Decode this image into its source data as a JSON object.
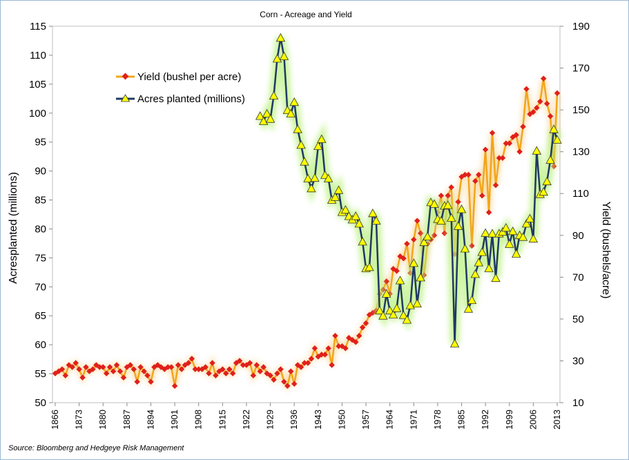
{
  "source": "Source: Bloomberg and Hedgeye Risk Management",
  "colors": {
    "yield_line": "#f2a51a",
    "yield_marker": "#e0201b",
    "acres_line": "#1f3864",
    "acres_marker": "#ffff00",
    "glow": "#b8f07a"
  },
  "chart_data": {
    "type": "line",
    "title": "Corn - Acreage and Yield",
    "ylabel_left": "Acresplanted (millions)",
    "ylabel_right": "Yield (bushels/acre)",
    "ylim_left": [
      50,
      115
    ],
    "ylim_right": [
      10,
      190
    ],
    "yticks_left": [
      "50",
      "55",
      "60",
      "65",
      "70",
      "75",
      "80",
      "85",
      "90",
      "95",
      "100",
      "105",
      "110",
      "115"
    ],
    "yticks_right": [
      "10",
      "30",
      "50",
      "70",
      "90",
      "110",
      "130",
      "150",
      "170",
      "190"
    ],
    "xlim": [
      1866,
      2013
    ],
    "xticks": [
      "1866",
      "1873",
      "1880",
      "1887",
      "1894",
      "1901",
      "1908",
      "1915",
      "1922",
      "1929",
      "1936",
      "1943",
      "1950",
      "1957",
      "1964",
      "1971",
      "1978",
      "1985",
      "1992",
      "1999",
      "2006",
      "2013"
    ],
    "legend_position": "top-left",
    "grid": false,
    "series": [
      {
        "name": "Yield (bushel per acre)",
        "axis": "right",
        "x": [
          1866,
          1867,
          1868,
          1869,
          1870,
          1871,
          1872,
          1873,
          1874,
          1875,
          1876,
          1877,
          1878,
          1879,
          1880,
          1881,
          1882,
          1883,
          1884,
          1885,
          1886,
          1887,
          1888,
          1889,
          1890,
          1891,
          1892,
          1893,
          1894,
          1895,
          1896,
          1897,
          1898,
          1899,
          1900,
          1901,
          1902,
          1903,
          1904,
          1905,
          1906,
          1907,
          1908,
          1909,
          1910,
          1911,
          1912,
          1913,
          1914,
          1915,
          1916,
          1917,
          1918,
          1919,
          1920,
          1921,
          1922,
          1923,
          1924,
          1925,
          1926,
          1927,
          1928,
          1929,
          1930,
          1931,
          1932,
          1933,
          1934,
          1935,
          1936,
          1937,
          1938,
          1939,
          1940,
          1941,
          1942,
          1943,
          1944,
          1945,
          1946,
          1947,
          1948,
          1949,
          1950,
          1951,
          1952,
          1953,
          1954,
          1955,
          1956,
          1957,
          1958,
          1959,
          1960,
          1961,
          1962,
          1963,
          1964,
          1965,
          1966,
          1967,
          1968,
          1969,
          1970,
          1971,
          1972,
          1973,
          1974,
          1975,
          1976,
          1977,
          1978,
          1979,
          1980,
          1981,
          1982,
          1983,
          1984,
          1985,
          1986,
          1987,
          1988,
          1989,
          1990,
          1991,
          1992,
          1993,
          1994,
          1995,
          1996,
          1997,
          1998,
          1999,
          2000,
          2001,
          2002,
          2003,
          2004,
          2005,
          2006,
          2007,
          2008,
          2009,
          2010,
          2011,
          2012,
          2013
        ],
        "values": [
          24,
          25,
          26,
          23,
          28,
          27,
          29,
          26,
          22,
          27,
          25,
          26,
          28,
          27,
          27,
          24,
          27,
          25,
          28,
          25,
          22,
          27,
          28,
          26,
          20,
          27,
          25,
          23,
          20,
          27,
          28,
          27,
          26,
          27,
          27,
          18,
          28,
          26,
          28,
          29,
          31,
          26,
          26,
          26,
          27,
          24,
          29,
          23,
          25,
          26,
          24,
          26,
          24,
          29,
          30,
          28,
          28,
          29,
          23,
          28,
          25,
          27,
          24,
          23,
          21,
          24,
          26,
          20,
          18,
          25,
          19,
          28,
          27,
          29,
          29,
          31,
          36,
          32,
          33,
          33,
          36,
          28,
          42,
          37,
          37,
          36,
          41,
          40,
          39,
          42,
          46,
          48,
          52,
          53,
          54,
          62,
          64,
          68,
          62,
          74,
          73,
          80,
          79,
          86,
          72,
          88,
          97,
          91,
          71,
          86,
          88,
          90,
          101,
          109,
          91,
          109,
          113,
          81,
          106,
          118,
          119,
          119,
          85,
          116,
          119,
          109,
          131,
          101,
          139,
          114,
          127,
          127,
          134,
          134,
          137,
          138,
          130,
          142,
          160,
          148,
          149,
          151,
          154,
          165,
          153,
          147,
          123,
          158
        ]
      },
      {
        "name": "Acres planted (millions)",
        "axis": "left",
        "x": [
          1926,
          1927,
          1928,
          1929,
          1930,
          1931,
          1932,
          1933,
          1934,
          1935,
          1936,
          1937,
          1938,
          1939,
          1940,
          1941,
          1942,
          1943,
          1944,
          1945,
          1946,
          1947,
          1948,
          1949,
          1950,
          1951,
          1952,
          1953,
          1954,
          1955,
          1956,
          1957,
          1958,
          1959,
          1960,
          1961,
          1962,
          1963,
          1964,
          1965,
          1966,
          1967,
          1968,
          1969,
          1970,
          1971,
          1972,
          1973,
          1974,
          1975,
          1976,
          1977,
          1978,
          1979,
          1980,
          1981,
          1982,
          1983,
          1984,
          1985,
          1986,
          1987,
          1988,
          1989,
          1990,
          1991,
          1992,
          1993,
          1994,
          1995,
          1996,
          1997,
          1998,
          1999,
          2000,
          2001,
          2002,
          2003,
          2004,
          2005,
          2006,
          2007,
          2008,
          2009,
          2010,
          2011,
          2012,
          2013
        ],
        "values": [
          99.5,
          98.6,
          99.9,
          99.0,
          103.0,
          109.4,
          113.0,
          109.8,
          100.5,
          99.9,
          101.9,
          97.2,
          94.5,
          91.6,
          88.7,
          87.0,
          88.8,
          94.3,
          95.5,
          89.3,
          88.7,
          85.0,
          85.5,
          86.7,
          82.9,
          83.3,
          82.2,
          81.6,
          82.2,
          80.9,
          77.8,
          73.2,
          73.4,
          82.7,
          81.4,
          65.9,
          65.0,
          68.8,
          65.9,
          65.2,
          66.3,
          71.1,
          65.1,
          64.3,
          66.8,
          74.1,
          67.1,
          71.6,
          77.7,
          78.7,
          84.6,
          84.3,
          81.7,
          81.4,
          84.0,
          84.1,
          81.9,
          60.2,
          80.5,
          83.4,
          76.6,
          66.2,
          67.7,
          72.2,
          74.2,
          76.0,
          79.3,
          73.2,
          79.2,
          71.5,
          79.2,
          79.5,
          80.2,
          77.4,
          79.6,
          75.7,
          78.9,
          78.6,
          80.9,
          81.8,
          78.3,
          93.5,
          86.0,
          86.4,
          88.2,
          91.9,
          97.2,
          95.4
        ]
      }
    ]
  }
}
